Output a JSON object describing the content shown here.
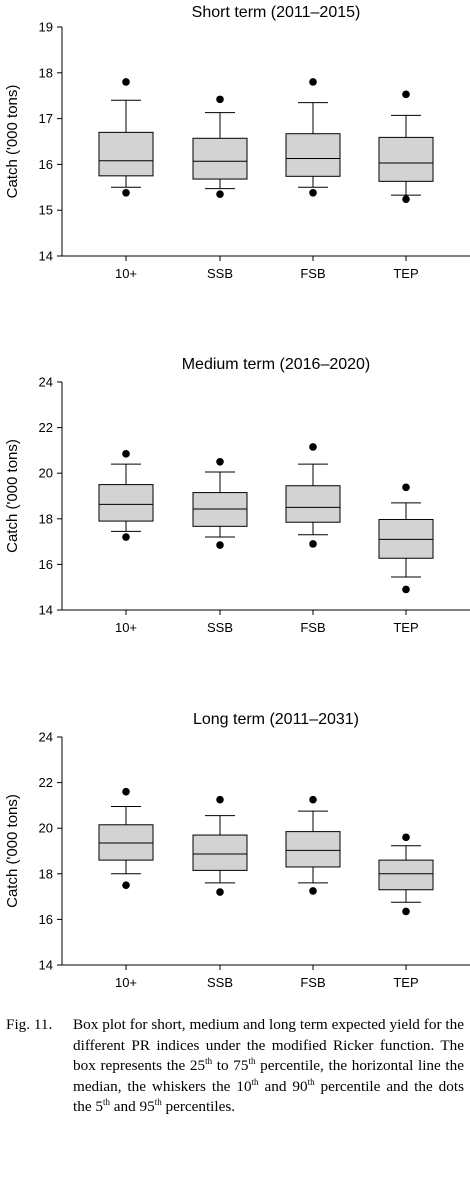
{
  "chart_data": [
    {
      "type": "box",
      "title": "Short term (2011–2015)",
      "ylabel": "Catch ('000 tons)",
      "ylim": [
        14,
        19
      ],
      "yticks": [
        14,
        15,
        16,
        17,
        18,
        19
      ],
      "categories": [
        "10+",
        "SSB",
        "FSB",
        "TEP"
      ],
      "boxes": [
        {
          "p5": 15.38,
          "p10": 15.5,
          "q1": 15.75,
          "median": 16.08,
          "q3": 16.7,
          "p90": 17.4,
          "p95": 17.8
        },
        {
          "p5": 15.35,
          "p10": 15.47,
          "q1": 15.68,
          "median": 16.07,
          "q3": 16.57,
          "p90": 17.13,
          "p95": 17.42
        },
        {
          "p5": 15.38,
          "p10": 15.5,
          "q1": 15.74,
          "median": 16.13,
          "q3": 16.67,
          "p90": 17.35,
          "p95": 17.8
        },
        {
          "p5": 15.24,
          "p10": 15.33,
          "q1": 15.63,
          "median": 16.03,
          "q3": 16.59,
          "p90": 17.07,
          "p95": 17.53
        }
      ]
    },
    {
      "type": "box",
      "title": "Medium term (2016–2020)",
      "ylabel": "Catch ('000 tons)",
      "ylim": [
        14,
        24
      ],
      "yticks": [
        14,
        16,
        18,
        20,
        22,
        24
      ],
      "categories": [
        "10+",
        "SSB",
        "FSB",
        "TEP"
      ],
      "boxes": [
        {
          "p5": 17.2,
          "p10": 17.45,
          "q1": 17.9,
          "median": 18.63,
          "q3": 19.5,
          "p90": 20.4,
          "p95": 20.85
        },
        {
          "p5": 16.85,
          "p10": 17.2,
          "q1": 17.67,
          "median": 18.43,
          "q3": 19.15,
          "p90": 20.05,
          "p95": 20.5
        },
        {
          "p5": 16.9,
          "p10": 17.3,
          "q1": 17.85,
          "median": 18.5,
          "q3": 19.45,
          "p90": 20.4,
          "p95": 21.15
        },
        {
          "p5": 14.9,
          "p10": 15.45,
          "q1": 16.27,
          "median": 17.1,
          "q3": 17.97,
          "p90": 18.7,
          "p95": 19.38
        }
      ]
    },
    {
      "type": "box",
      "title": "Long term (2011–2031)",
      "ylabel": "Catch ('000 tons)",
      "ylim": [
        14,
        24
      ],
      "yticks": [
        14,
        16,
        18,
        20,
        22,
        24
      ],
      "categories": [
        "10+",
        "SSB",
        "FSB",
        "TEP"
      ],
      "boxes": [
        {
          "p5": 17.5,
          "p10": 18.0,
          "q1": 18.6,
          "median": 19.35,
          "q3": 20.15,
          "p90": 20.95,
          "p95": 21.6
        },
        {
          "p5": 17.2,
          "p10": 17.6,
          "q1": 18.15,
          "median": 18.87,
          "q3": 19.7,
          "p90": 20.55,
          "p95": 21.25
        },
        {
          "p5": 17.25,
          "p10": 17.6,
          "q1": 18.3,
          "median": 19.03,
          "q3": 19.85,
          "p90": 20.75,
          "p95": 21.25
        },
        {
          "p5": 16.35,
          "p10": 16.75,
          "q1": 17.3,
          "median": 18.0,
          "q3": 18.6,
          "p90": 19.23,
          "p95": 19.6
        }
      ]
    }
  ],
  "caption": {
    "label": "Fig. 11.",
    "text_1": "Box plot for short, medium and long term expected yield for the different PR indices under the modified Ricker function. The box represents the 25",
    "sup_1": "th",
    "text_2": " to 75",
    "sup_2": "th",
    "text_3": " percentile, the horizontal line the median, the whiskers the 10",
    "sup_3": "th",
    "text_4": " and 90",
    "sup_4": "th",
    "text_5": " percentile and the dots the 5",
    "sup_5": "th",
    "text_6": " and 95",
    "sup_6": "th",
    "text_7": " percentiles."
  }
}
